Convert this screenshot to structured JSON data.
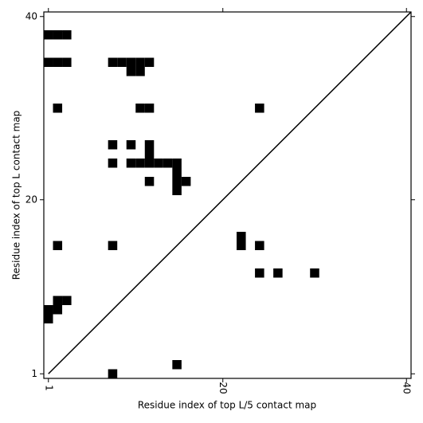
{
  "chart_data": {
    "type": "contact_map",
    "xlabel": "Residue index of top L/5 contact map",
    "ylabel": "Residue index of top L contact map",
    "x": [
      1,
      2,
      3,
      1,
      2,
      3,
      8,
      9,
      10,
      11,
      12,
      10,
      11,
      2,
      11,
      12,
      24,
      8,
      10,
      12,
      12,
      8,
      10,
      11,
      12,
      13,
      14,
      15,
      15,
      12,
      15,
      16,
      15,
      22,
      2,
      8,
      22,
      24,
      24,
      26,
      30,
      2,
      3,
      1,
      2,
      1,
      15,
      8
    ],
    "y": [
      38,
      38,
      38,
      35,
      35,
      35,
      35,
      35,
      35,
      35,
      35,
      34,
      34,
      30,
      30,
      30,
      30,
      26,
      26,
      26,
      25,
      24,
      24,
      24,
      24,
      24,
      24,
      24,
      23,
      22,
      22,
      22,
      21,
      16,
      15,
      15,
      15,
      15,
      12,
      12,
      12,
      9,
      9,
      8,
      8,
      7,
      2,
      1
    ],
    "color": "#000000",
    "xlim": [
      0.5,
      40.5
    ],
    "ylim": [
      0.5,
      40.5
    ],
    "xticks": [
      1,
      20,
      40
    ],
    "yticks": [
      1,
      20,
      40
    ],
    "diagonal": true
  }
}
